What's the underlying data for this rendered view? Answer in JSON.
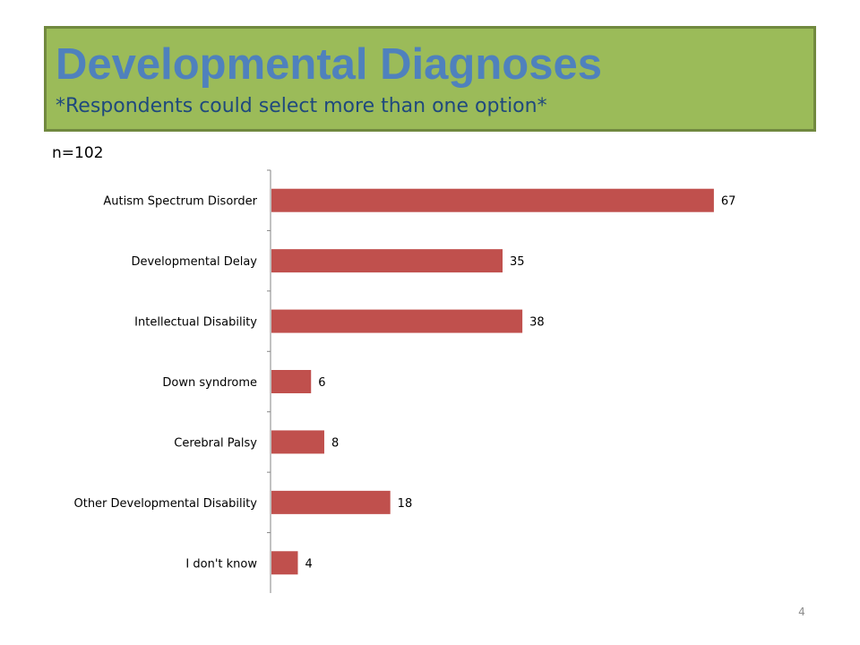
{
  "slide": {
    "title": "Developmental Diagnoses",
    "subtitle": "*Respondents could select more than one option*",
    "sample_size": "n=102",
    "page_number": "4"
  },
  "colors": {
    "title_box_fill": "#9bbb59",
    "title_box_border": "#71893f",
    "title_text": "#4f81bd",
    "subtitle_text": "#1f497d",
    "bar_fill": "#c0504d",
    "axis_line": "#868686"
  },
  "chart_data": {
    "type": "bar",
    "orientation": "horizontal",
    "categories": [
      "Autism Spectrum Disorder",
      "Developmental Delay",
      "Intellectual Disability",
      "Down syndrome",
      "Cerebral Palsy",
      "Other Developmental Disability",
      "I don't know"
    ],
    "values": [
      67,
      35,
      38,
      6,
      8,
      18,
      4
    ],
    "data_labels": [
      "67",
      "35",
      "38",
      "6",
      "8",
      "18",
      "4"
    ],
    "xlim": [
      0,
      70
    ],
    "grid": false,
    "legend": "none"
  }
}
